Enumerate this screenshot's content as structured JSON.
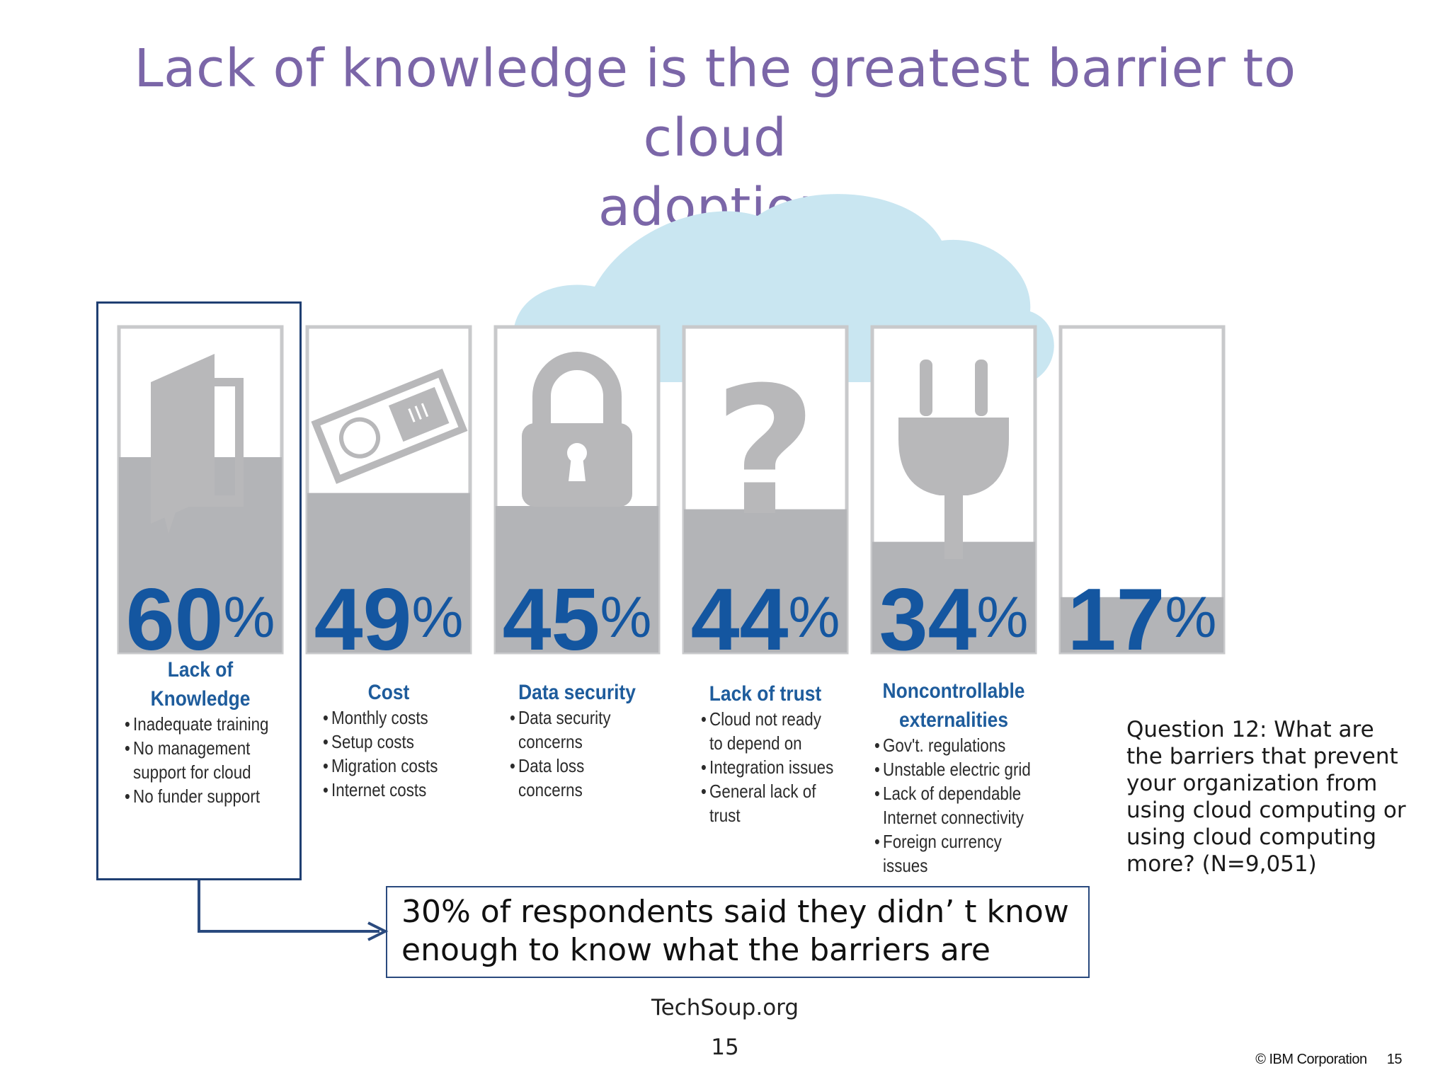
{
  "title": {
    "line1": "Lack of knowledge is the greatest barrier to cloud",
    "line2": "adoption"
  },
  "chart_data": {
    "type": "bar",
    "unit": "%",
    "categories": [
      "Lack of Knowledge",
      "Cost",
      "Data security",
      "Lack of trust",
      "Noncontrollable externalities",
      ""
    ],
    "values": [
      60,
      49,
      45,
      44,
      34,
      17
    ],
    "icons": [
      "book-icon",
      "money-icon",
      "padlock-icon",
      "question-mark-icon",
      "plug-icon",
      ""
    ],
    "ylim": [
      0,
      100
    ],
    "colors": {
      "fill": "#b3b4b7",
      "panel": "#ffffff",
      "border": "#c8c9cb",
      "value_text": "#1456a0",
      "cloud": "#c9e6f1",
      "icon": "#b8b8ba",
      "highlight": "#1f3f72"
    }
  },
  "categories": [
    {
      "title_lines": [
        "Lack of",
        "Knowledge"
      ],
      "bullets": [
        "Inadequate training",
        "No management",
        "support for cloud",
        "No funder support"
      ],
      "indent": [
        false,
        false,
        true,
        false
      ]
    },
    {
      "title_lines": [
        "Cost"
      ],
      "bullets": [
        "Monthly costs",
        "Setup costs",
        "Migration costs",
        "Internet costs"
      ],
      "indent": [
        false,
        false,
        false,
        false
      ]
    },
    {
      "title_lines": [
        "Data security"
      ],
      "bullets": [
        "Data security",
        "concerns",
        "Data loss",
        "concerns"
      ],
      "indent": [
        false,
        true,
        false,
        true
      ]
    },
    {
      "title_lines": [
        "Lack of trust"
      ],
      "bullets": [
        "Cloud not ready",
        "to depend on",
        "Integration issues",
        "General lack of",
        "trust"
      ],
      "indent": [
        false,
        true,
        false,
        false,
        true
      ]
    },
    {
      "title_lines": [
        "Noncontrollable",
        "externalities"
      ],
      "bullets": [
        "Gov't. regulations",
        "Unstable electric grid",
        "Lack of dependable",
        "Internet connectivity",
        "Foreign currency",
        "issues"
      ],
      "indent": [
        false,
        false,
        false,
        true,
        false,
        true
      ]
    }
  ],
  "callout": {
    "line1": "30% of respondents said they didn’ t know",
    "line2": "enough to know what  the barriers are"
  },
  "question": "Question 12: What are the barriers that prevent your organization from using cloud computing or using cloud computing more? (N=9,051)",
  "footer": {
    "source": "TechSoup.org",
    "page": "15",
    "copyright": "© IBM Corporation",
    "copyright_page": "15"
  }
}
